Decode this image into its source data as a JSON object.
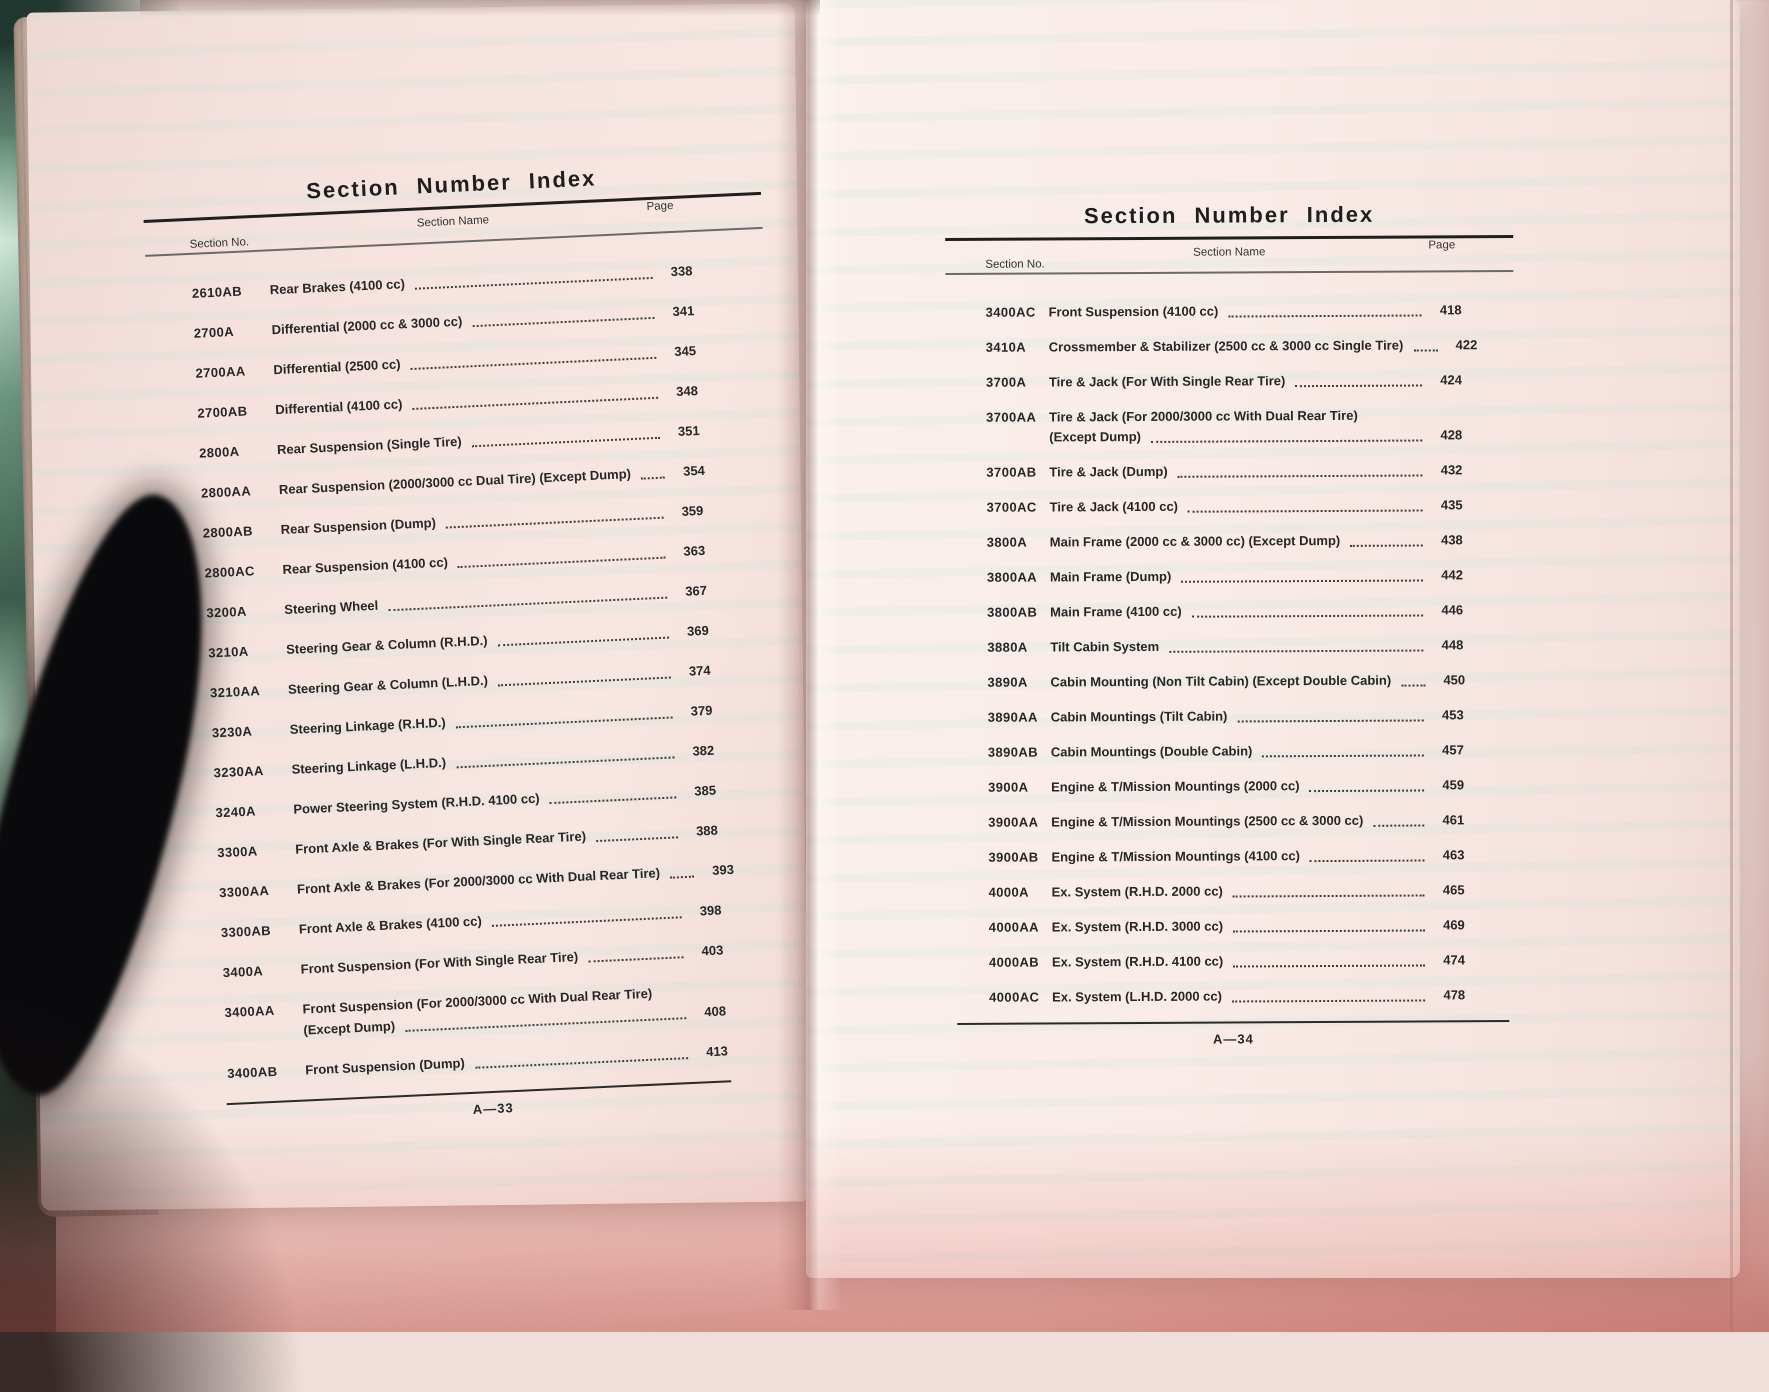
{
  "left_page": {
    "title": "Section Number Index",
    "columns": {
      "no": "Section No.",
      "name": "Section Name",
      "page": "Page"
    },
    "rows": [
      {
        "no": "2610AB",
        "name": "Rear Brakes (4100 cc)",
        "page": "338"
      },
      {
        "no": "2700A",
        "name": "Differential (2000 cc & 3000 cc)",
        "page": "341"
      },
      {
        "no": "2700AA",
        "name": "Differential (2500 cc)",
        "page": "345"
      },
      {
        "no": "2700AB",
        "name": "Differential (4100 cc)",
        "page": "348"
      },
      {
        "no": "2800A",
        "name": "Rear Suspension (Single Tire)",
        "page": "351"
      },
      {
        "no": "2800AA",
        "name": "Rear Suspension (2000/3000 cc Dual Tire) (Except Dump)",
        "page": "354"
      },
      {
        "no": "2800AB",
        "name": "Rear Suspension (Dump)",
        "page": "359"
      },
      {
        "no": "2800AC",
        "name": "Rear Suspension (4100 cc)",
        "page": "363"
      },
      {
        "no": "3200A",
        "name": "Steering Wheel",
        "page": "367"
      },
      {
        "no": "3210A",
        "name": "Steering Gear & Column (R.H.D.)",
        "page": "369"
      },
      {
        "no": "3210AA",
        "name": "Steering Gear & Column (L.H.D.)",
        "page": "374"
      },
      {
        "no": "3230A",
        "name": "Steering Linkage (R.H.D.)",
        "page": "379"
      },
      {
        "no": "3230AA",
        "name": "Steering Linkage (L.H.D.)",
        "page": "382"
      },
      {
        "no": "3240A",
        "name": "Power Steering System (R.H.D. 4100 cc)",
        "page": "385"
      },
      {
        "no": "3300A",
        "name": "Front Axle & Brakes (For With Single Rear Tire)",
        "page": "388"
      },
      {
        "no": "3300AA",
        "name": "Front Axle & Brakes (For 2000/3000 cc With Dual Rear Tire)",
        "page": "393"
      },
      {
        "no": "3300AB",
        "name": "Front Axle & Brakes (4100 cc)",
        "page": "398"
      },
      {
        "no": "3400A",
        "name": "Front Suspension (For With Single Rear Tire)",
        "page": "403"
      },
      {
        "no": "3400AA",
        "name": "Front Suspension (For 2000/3000 cc With Dual Rear Tire)",
        "name2": "(Except Dump)",
        "page": "408"
      },
      {
        "no": "3400AB",
        "name": "Front Suspension (Dump)",
        "page": "413"
      }
    ],
    "footer": "A—33"
  },
  "right_page": {
    "title": "Section Number Index",
    "columns": {
      "no": "Section No.",
      "name": "Section Name",
      "page": "Page"
    },
    "rows": [
      {
        "no": "3400AC",
        "name": "Front Suspension (4100 cc)",
        "page": "418"
      },
      {
        "no": "3410A",
        "name": "Crossmember & Stabilizer (2500 cc & 3000 cc Single Tire)",
        "page": "422"
      },
      {
        "no": "3700A",
        "name": "Tire & Jack (For With Single Rear Tire)",
        "page": "424"
      },
      {
        "no": "3700AA",
        "name": "Tire & Jack (For 2000/3000 cc With Dual Rear Tire)",
        "name2": "(Except Dump)",
        "page": "428"
      },
      {
        "no": "3700AB",
        "name": "Tire & Jack (Dump)",
        "page": "432"
      },
      {
        "no": "3700AC",
        "name": "Tire & Jack (4100 cc)",
        "page": "435"
      },
      {
        "no": "3800A",
        "name": "Main Frame (2000 cc & 3000 cc) (Except Dump)",
        "page": "438"
      },
      {
        "no": "3800AA",
        "name": "Main Frame (Dump)",
        "page": "442"
      },
      {
        "no": "3800AB",
        "name": "Main Frame (4100 cc)",
        "page": "446"
      },
      {
        "no": "3880A",
        "name": "Tilt Cabin System",
        "page": "448"
      },
      {
        "no": "3890A",
        "name": "Cabin Mounting (Non Tilt Cabin) (Except Double Cabin)",
        "page": "450"
      },
      {
        "no": "3890AA",
        "name": "Cabin Mountings (Tilt Cabin)",
        "page": "453"
      },
      {
        "no": "3890AB",
        "name": "Cabin Mountings (Double Cabin)",
        "page": "457"
      },
      {
        "no": "3900A",
        "name": "Engine & T/Mission Mountings (2000 cc)",
        "page": "459"
      },
      {
        "no": "3900AA",
        "name": "Engine & T/Mission Mountings (2500 cc & 3000 cc)",
        "page": "461"
      },
      {
        "no": "3900AB",
        "name": "Engine & T/Mission Mountings (4100 cc)",
        "page": "463"
      },
      {
        "no": "4000A",
        "name": "Ex. System (R.H.D. 2000 cc)",
        "page": "465"
      },
      {
        "no": "4000AA",
        "name": "Ex. System (R.H.D. 3000 cc)",
        "page": "469"
      },
      {
        "no": "4000AB",
        "name": "Ex. System (R.H.D. 4100 cc)",
        "page": "474"
      },
      {
        "no": "4000AC",
        "name": "Ex. System (L.H.D. 2000 cc)",
        "page": "478"
      }
    ],
    "footer": "A—34"
  }
}
